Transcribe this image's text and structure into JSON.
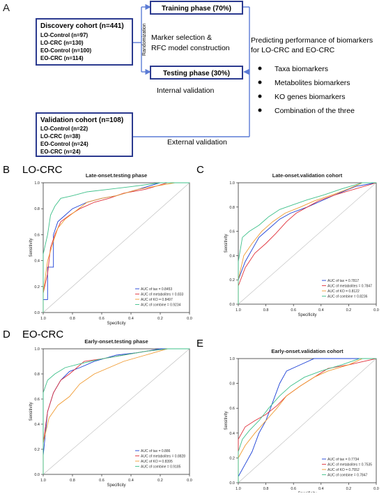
{
  "panel_letters": {
    "a": "A",
    "b": "B",
    "c": "C",
    "d": "D",
    "e": "E"
  },
  "flow": {
    "discovery": {
      "title": "Discovery cohort (n=441)",
      "lines": [
        "LO-Control (n=97)",
        "LO-CRC (n=130)",
        "EO-Control (n=100)",
        "EO-CRC (n=114)"
      ]
    },
    "randomization": "Randomization",
    "training": "Training phase (70%)",
    "marker_line1": "Marker selection  &",
    "marker_line2": "RFC model construction",
    "testing": "Testing phase (30%)",
    "internal": "Internal validation",
    "predict_line1": "Predicting performance of biomarkers",
    "predict_line2": "for LO-CRC and EO-CRC",
    "bullets": [
      "Taxa biomarkers",
      "Metabolites biomarkers",
      "KO genes biomarkers",
      "Combination of the three"
    ],
    "validation": {
      "title": "Validation cohort (n=108)",
      "lines": [
        "LO-Control (n=22)",
        "LO-CRC (n=38)",
        "EO-Control (n=24)",
        "EO-CRC (n=24)"
      ]
    },
    "external": "External validation"
  },
  "group_labels": {
    "lo": "LO-CRC",
    "eo": "EO-CRC"
  },
  "colors": {
    "tax": "#1a3fd6",
    "metabolites": "#e0303a",
    "ko": "#f09a30",
    "combine": "#3ec08a",
    "box": "#2b3a8f",
    "arrow": "#5b7bd5"
  },
  "chart_data": [
    {
      "type": "line",
      "title": "Late-onset.testing phase",
      "xlabel": "Specificity",
      "ylabel": "Sensitivity",
      "xlim": [
        1.0,
        0.0
      ],
      "ylim": [
        0.0,
        1.0
      ],
      "xticks": [
        "1.0",
        "0.8",
        "0.6",
        "0.4",
        "0.2",
        "0.0"
      ],
      "yticks": [
        "0.0",
        "0.2",
        "0.4",
        "0.6",
        "0.8",
        "1.0"
      ],
      "legend_position": "bottom-right",
      "series": [
        {
          "name": "AUC of tax = 0.8453",
          "key": "tax",
          "points": [
            [
              1,
              0
            ],
            [
              1,
              0.1
            ],
            [
              0.97,
              0.1
            ],
            [
              0.97,
              0.35
            ],
            [
              0.93,
              0.35
            ],
            [
              0.93,
              0.6
            ],
            [
              0.9,
              0.7
            ],
            [
              0.85,
              0.75
            ],
            [
              0.8,
              0.8
            ],
            [
              0.7,
              0.85
            ],
            [
              0.6,
              0.88
            ],
            [
              0.5,
              0.9
            ],
            [
              0.35,
              0.95
            ],
            [
              0.2,
              1.0
            ],
            [
              0,
              1.0
            ]
          ]
        },
        {
          "name": "AUC of metabolites = 0.833",
          "key": "metabolites",
          "points": [
            [
              1,
              0
            ],
            [
              1,
              0.15
            ],
            [
              0.97,
              0.3
            ],
            [
              0.95,
              0.5
            ],
            [
              0.92,
              0.6
            ],
            [
              0.88,
              0.7
            ],
            [
              0.82,
              0.75
            ],
            [
              0.75,
              0.8
            ],
            [
              0.65,
              0.85
            ],
            [
              0.55,
              0.88
            ],
            [
              0.45,
              0.92
            ],
            [
              0.3,
              0.95
            ],
            [
              0.15,
              1.0
            ],
            [
              0,
              1.0
            ]
          ]
        },
        {
          "name": "AUC of  KO = 0.8497",
          "key": "ko",
          "points": [
            [
              1,
              0
            ],
            [
              1,
              0.15
            ],
            [
              0.97,
              0.4
            ],
            [
              0.93,
              0.55
            ],
            [
              0.9,
              0.65
            ],
            [
              0.85,
              0.72
            ],
            [
              0.78,
              0.78
            ],
            [
              0.7,
              0.85
            ],
            [
              0.6,
              0.88
            ],
            [
              0.5,
              0.9
            ],
            [
              0.35,
              0.95
            ],
            [
              0.2,
              0.98
            ],
            [
              0.1,
              1.0
            ],
            [
              0,
              1.0
            ]
          ]
        },
        {
          "name": "AUC of combine = 0.9234",
          "key": "combine",
          "points": [
            [
              1,
              0
            ],
            [
              1,
              0.45
            ],
            [
              0.97,
              0.6
            ],
            [
              0.95,
              0.75
            ],
            [
              0.92,
              0.82
            ],
            [
              0.88,
              0.88
            ],
            [
              0.8,
              0.9
            ],
            [
              0.7,
              0.93
            ],
            [
              0.55,
              0.95
            ],
            [
              0.4,
              0.97
            ],
            [
              0.2,
              1.0
            ],
            [
              0,
              1.0
            ]
          ]
        }
      ]
    },
    {
      "type": "line",
      "title": "Late-onset.validation cohort",
      "xlabel": "Specificity",
      "ylabel": "Sensitivity",
      "xlim": [
        1.0,
        0.0
      ],
      "ylim": [
        0.0,
        1.0
      ],
      "xticks": [
        "1.0",
        "0.8",
        "0.6",
        "0.4",
        "0.2",
        "0.0"
      ],
      "yticks": [
        "0.0",
        "0.2",
        "0.4",
        "0.6",
        "0.8",
        "1.0"
      ],
      "legend_position": "bottom-right",
      "series": [
        {
          "name": "AUC of tax = 0.7817",
          "key": "tax",
          "points": [
            [
              1,
              0
            ],
            [
              1,
              0.2
            ],
            [
              0.95,
              0.35
            ],
            [
              0.9,
              0.45
            ],
            [
              0.85,
              0.55
            ],
            [
              0.78,
              0.62
            ],
            [
              0.7,
              0.7
            ],
            [
              0.62,
              0.75
            ],
            [
              0.5,
              0.8
            ],
            [
              0.4,
              0.85
            ],
            [
              0.3,
              0.9
            ],
            [
              0.15,
              0.97
            ],
            [
              0,
              1.0
            ]
          ]
        },
        {
          "name": "AUC of metabolites = 0.7847",
          "key": "metabolites",
          "points": [
            [
              1,
              0
            ],
            [
              1,
              0.15
            ],
            [
              0.95,
              0.3
            ],
            [
              0.88,
              0.42
            ],
            [
              0.8,
              0.5
            ],
            [
              0.73,
              0.58
            ],
            [
              0.65,
              0.68
            ],
            [
              0.58,
              0.75
            ],
            [
              0.5,
              0.8
            ],
            [
              0.42,
              0.85
            ],
            [
              0.3,
              0.9
            ],
            [
              0.15,
              0.95
            ],
            [
              0,
              1.0
            ]
          ]
        },
        {
          "name": "AUC of  KO = 0.8122",
          "key": "ko",
          "points": [
            [
              1,
              0
            ],
            [
              1,
              0.2
            ],
            [
              0.96,
              0.4
            ],
            [
              0.9,
              0.5
            ],
            [
              0.83,
              0.6
            ],
            [
              0.75,
              0.68
            ],
            [
              0.66,
              0.75
            ],
            [
              0.55,
              0.8
            ],
            [
              0.45,
              0.85
            ],
            [
              0.32,
              0.9
            ],
            [
              0.2,
              0.95
            ],
            [
              0.1,
              1.0
            ],
            [
              0,
              1.0
            ]
          ]
        },
        {
          "name": "AUC of combine = 0.8236",
          "key": "combine",
          "points": [
            [
              1,
              0
            ],
            [
              1,
              0.35
            ],
            [
              0.97,
              0.55
            ],
            [
              0.92,
              0.6
            ],
            [
              0.85,
              0.65
            ],
            [
              0.78,
              0.72
            ],
            [
              0.7,
              0.78
            ],
            [
              0.6,
              0.82
            ],
            [
              0.5,
              0.86
            ],
            [
              0.38,
              0.9
            ],
            [
              0.25,
              0.95
            ],
            [
              0.1,
              1.0
            ],
            [
              0,
              1.0
            ]
          ]
        }
      ]
    },
    {
      "type": "line",
      "title": "Early-onset.testing phase",
      "xlabel": "Specificity",
      "ylabel": "Sensitivity",
      "xlim": [
        1.0,
        0.0
      ],
      "ylim": [
        0.0,
        1.0
      ],
      "xticks": [
        "1.0",
        "0.8",
        "0.6",
        "0.4",
        "0.2",
        "0.0"
      ],
      "yticks": [
        "0.0",
        "0.2",
        "0.4",
        "0.6",
        "0.8",
        "1.0"
      ],
      "legend_position": "bottom-right",
      "series": [
        {
          "name": "AUC of tax = 0.886",
          "key": "tax",
          "points": [
            [
              1,
              0
            ],
            [
              1,
              0.15
            ],
            [
              0.97,
              0.5
            ],
            [
              0.93,
              0.65
            ],
            [
              0.88,
              0.75
            ],
            [
              0.82,
              0.82
            ],
            [
              0.75,
              0.85
            ],
            [
              0.65,
              0.9
            ],
            [
              0.5,
              0.95
            ],
            [
              0.35,
              0.97
            ],
            [
              0.2,
              1.0
            ],
            [
              0,
              1.0
            ]
          ]
        },
        {
          "name": "AUC of metabolites = 0.8828",
          "key": "metabolites",
          "points": [
            [
              1,
              0
            ],
            [
              1,
              0.25
            ],
            [
              0.97,
              0.5
            ],
            [
              0.93,
              0.65
            ],
            [
              0.88,
              0.75
            ],
            [
              0.82,
              0.8
            ],
            [
              0.72,
              0.9
            ],
            [
              0.6,
              0.92
            ],
            [
              0.45,
              0.95
            ],
            [
              0.3,
              0.98
            ],
            [
              0.15,
              1.0
            ],
            [
              0,
              1.0
            ]
          ]
        },
        {
          "name": "AUC of  KO = 0.8395",
          "key": "ko",
          "points": [
            [
              1,
              0
            ],
            [
              1,
              0.25
            ],
            [
              0.96,
              0.45
            ],
            [
              0.9,
              0.55
            ],
            [
              0.82,
              0.62
            ],
            [
              0.75,
              0.72
            ],
            [
              0.65,
              0.8
            ],
            [
              0.55,
              0.85
            ],
            [
              0.45,
              0.9
            ],
            [
              0.3,
              0.95
            ],
            [
              0.15,
              1.0
            ],
            [
              0,
              1.0
            ]
          ]
        },
        {
          "name": "AUC of combine = 0.9185",
          "key": "combine",
          "points": [
            [
              1,
              0
            ],
            [
              1,
              0.65
            ],
            [
              0.97,
              0.75
            ],
            [
              0.92,
              0.8
            ],
            [
              0.85,
              0.85
            ],
            [
              0.75,
              0.88
            ],
            [
              0.6,
              0.92
            ],
            [
              0.45,
              0.95
            ],
            [
              0.3,
              0.98
            ],
            [
              0.15,
              1.0
            ],
            [
              0,
              1.0
            ]
          ]
        }
      ]
    },
    {
      "type": "line",
      "title": "Early-onset.validation cohort",
      "xlabel": "Specificity",
      "ylabel": "Sensitivity",
      "xlim": [
        1.0,
        0.0
      ],
      "ylim": [
        0.0,
        1.0
      ],
      "xticks": [
        "1.0",
        "0.8",
        "0.6",
        "0.4",
        "0.2",
        "0.0"
      ],
      "yticks": [
        "0.0",
        "0.2",
        "0.4",
        "0.6",
        "0.8",
        "1.0"
      ],
      "legend_position": "bottom-right",
      "series": [
        {
          "name": "AUC of tax = 0.7734",
          "key": "tax",
          "points": [
            [
              1,
              0
            ],
            [
              1,
              0.05
            ],
            [
              0.95,
              0.15
            ],
            [
              0.9,
              0.25
            ],
            [
              0.85,
              0.4
            ],
            [
              0.8,
              0.5
            ],
            [
              0.75,
              0.65
            ],
            [
              0.7,
              0.8
            ],
            [
              0.65,
              0.9
            ],
            [
              0.55,
              0.95
            ],
            [
              0.45,
              1.0
            ],
            [
              0,
              1.0
            ]
          ]
        },
        {
          "name": "AUC of metabolites = 0.7535",
          "key": "metabolites",
          "points": [
            [
              1,
              0
            ],
            [
              1,
              0.35
            ],
            [
              0.95,
              0.45
            ],
            [
              0.88,
              0.5
            ],
            [
              0.8,
              0.55
            ],
            [
              0.72,
              0.62
            ],
            [
              0.65,
              0.7
            ],
            [
              0.55,
              0.78
            ],
            [
              0.45,
              0.85
            ],
            [
              0.35,
              0.92
            ],
            [
              0.2,
              0.95
            ],
            [
              0.08,
              0.98
            ],
            [
              0,
              1.0
            ]
          ]
        },
        {
          "name": "AUC of  KO = 0.7552",
          "key": "ko",
          "points": [
            [
              1,
              0
            ],
            [
              1,
              0.2
            ],
            [
              0.95,
              0.3
            ],
            [
              0.88,
              0.4
            ],
            [
              0.8,
              0.5
            ],
            [
              0.72,
              0.6
            ],
            [
              0.65,
              0.7
            ],
            [
              0.55,
              0.78
            ],
            [
              0.45,
              0.85
            ],
            [
              0.35,
              0.9
            ],
            [
              0.2,
              0.95
            ],
            [
              0.1,
              1.0
            ],
            [
              0,
              1.0
            ]
          ]
        },
        {
          "name": "AUC of combine = 0.7847",
          "key": "combine",
          "points": [
            [
              1,
              0
            ],
            [
              1,
              0.25
            ],
            [
              0.97,
              0.35
            ],
            [
              0.92,
              0.42
            ],
            [
              0.85,
              0.5
            ],
            [
              0.78,
              0.6
            ],
            [
              0.7,
              0.7
            ],
            [
              0.62,
              0.78
            ],
            [
              0.52,
              0.85
            ],
            [
              0.4,
              0.9
            ],
            [
              0.25,
              0.95
            ],
            [
              0.12,
              1.0
            ],
            [
              0,
              1.0
            ]
          ]
        }
      ]
    }
  ]
}
